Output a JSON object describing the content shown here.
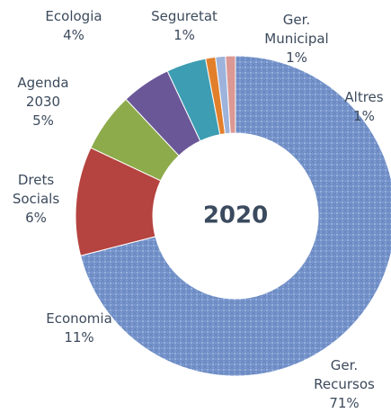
{
  "chart_data": {
    "type": "donut",
    "center_label": "2020",
    "categories": [
      "Ger. Recursos",
      "Economia",
      "Drets Socials",
      "Agenda 2030",
      "Ecologia",
      "Seguretat",
      "Ger. Municipal",
      "Altres"
    ],
    "values": [
      71,
      11,
      6,
      5,
      4,
      1,
      1,
      1
    ],
    "value_labels": [
      "71%",
      "11%",
      "6%",
      "5%",
      "4%",
      "1%",
      "1%",
      "1%"
    ],
    "colors": [
      "#7a98cf",
      "#b5433f",
      "#8dab4b",
      "#6a5798",
      "#3d9db2",
      "#e27f2b",
      "#9db3dc",
      "#dc9893"
    ]
  }
}
